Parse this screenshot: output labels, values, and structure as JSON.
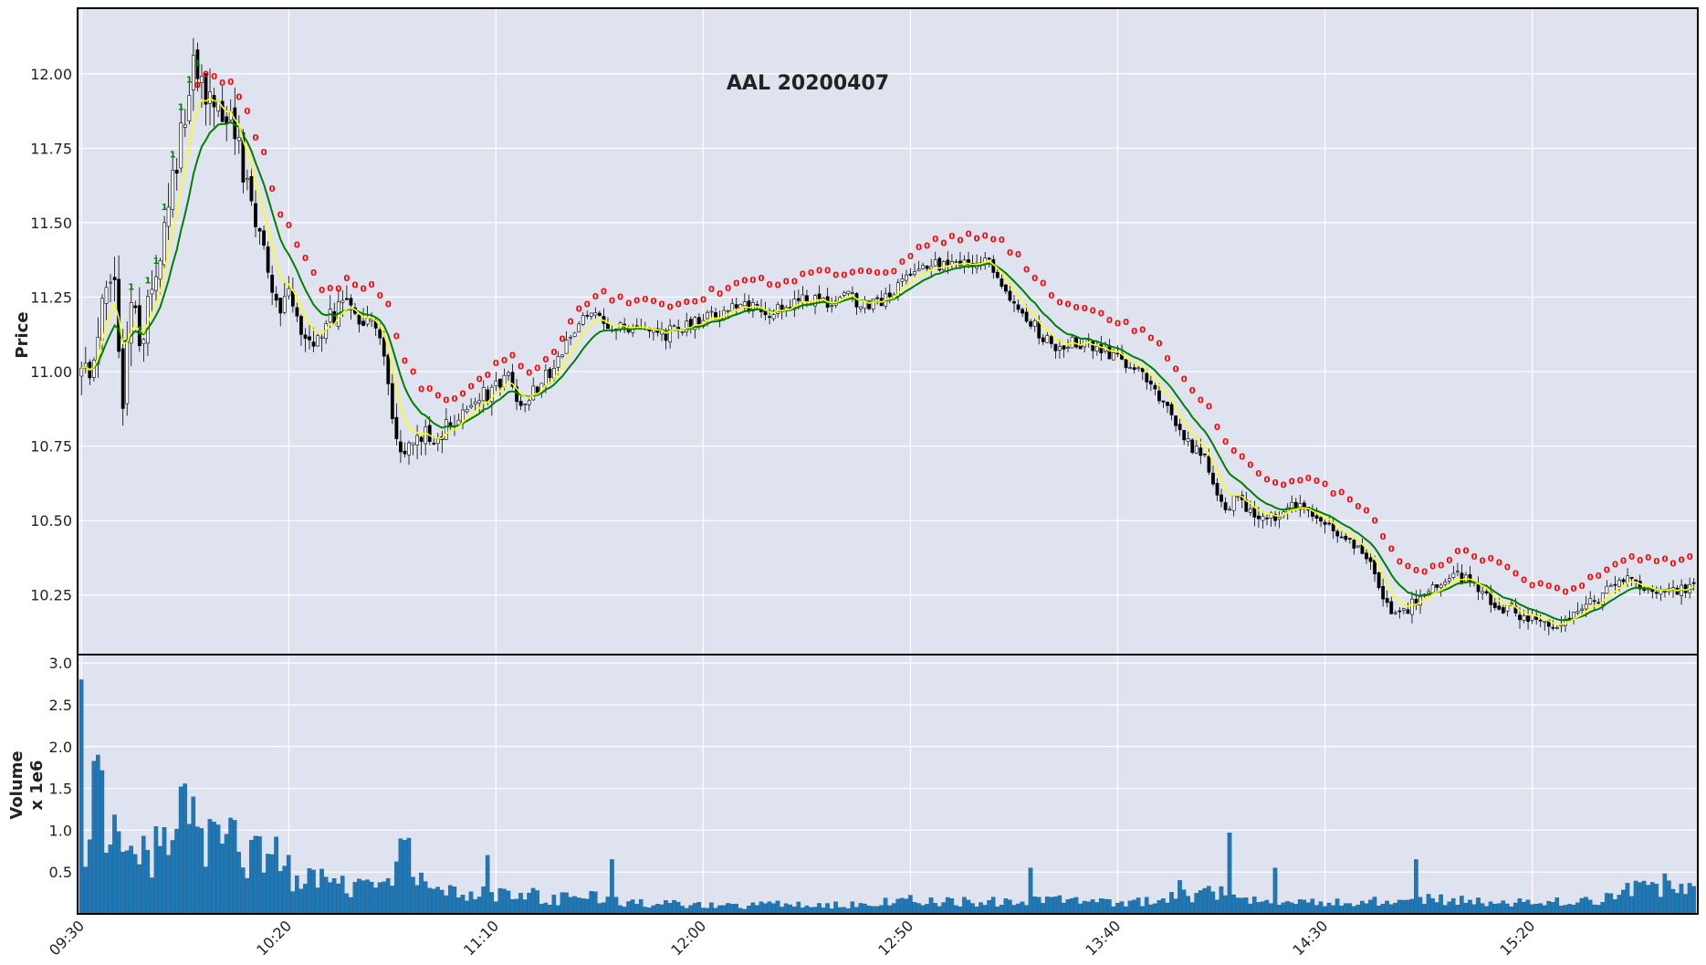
{
  "chart_data": {
    "type": "candlestick",
    "title": "AAL 20200407",
    "price_panel": {
      "ylabel": "Price",
      "ylim": [
        10.05,
        12.22
      ],
      "yticks": [
        10.25,
        10.5,
        10.75,
        11.0,
        11.25,
        11.5,
        11.75,
        12.0
      ],
      "ytick_labels": [
        "10.25",
        "10.50",
        "10.75",
        "11.00",
        "11.25",
        "11.50",
        "11.75",
        "12.00"
      ],
      "grid": true,
      "series": [
        {
          "name": "fast_ma",
          "color": "#ffff00"
        },
        {
          "name": "slow_ma",
          "color": "#008000"
        },
        {
          "name": "up_markers",
          "label": "1",
          "color": "#008000"
        },
        {
          "name": "down_markers",
          "label": "0",
          "color": "#ff0000"
        }
      ]
    },
    "volume_panel": {
      "ylabel_line1": "Volume",
      "ylabel_line2": "x 1e6",
      "ylim": [
        0,
        3.1
      ],
      "yticks": [
        0.5,
        1.0,
        1.5,
        2.0,
        2.5,
        3.0
      ],
      "ytick_labels": [
        "0.5",
        "1.0",
        "1.5",
        "2.0",
        "2.5",
        "3.0"
      ],
      "bar_color": "#1f77b4",
      "grid": true
    },
    "x_axis": {
      "bars": 390,
      "session_start": "09:30",
      "ticks": [
        {
          "index": 0,
          "label": "09:30"
        },
        {
          "index": 50,
          "label": "10:20"
        },
        {
          "index": 100,
          "label": "11:10"
        },
        {
          "index": 150,
          "label": "12:00"
        },
        {
          "index": 200,
          "label": "12:50"
        },
        {
          "index": 250,
          "label": "13:40"
        },
        {
          "index": 300,
          "label": "14:30"
        },
        {
          "index": 350,
          "label": "15:20"
        }
      ]
    },
    "price_path": [
      [
        0,
        11.0
      ],
      [
        2,
        10.97
      ],
      [
        5,
        11.2
      ],
      [
        8,
        11.3
      ],
      [
        9,
        11.1
      ],
      [
        10,
        10.92
      ],
      [
        12,
        11.2
      ],
      [
        14,
        11.12
      ],
      [
        17,
        11.25
      ],
      [
        20,
        11.45
      ],
      [
        23,
        11.72
      ],
      [
        26,
        11.97
      ],
      [
        27,
        12.03
      ],
      [
        29,
        11.95
      ],
      [
        31,
        11.88
      ],
      [
        33,
        11.86
      ],
      [
        36,
        11.82
      ],
      [
        38,
        11.75
      ],
      [
        40,
        11.62
      ],
      [
        42,
        11.52
      ],
      [
        44,
        11.42
      ],
      [
        46,
        11.25
      ],
      [
        48,
        11.2
      ],
      [
        50,
        11.25
      ],
      [
        52,
        11.18
      ],
      [
        54,
        11.12
      ],
      [
        56,
        11.1
      ],
      [
        58,
        11.15
      ],
      [
        60,
        11.18
      ],
      [
        63,
        11.22
      ],
      [
        66,
        11.2
      ],
      [
        70,
        11.15
      ],
      [
        73,
        11.05
      ],
      [
        75,
        10.85
      ],
      [
        77,
        10.72
      ],
      [
        80,
        10.76
      ],
      [
        83,
        10.8
      ],
      [
        86,
        10.78
      ],
      [
        90,
        10.85
      ],
      [
        95,
        10.9
      ],
      [
        100,
        10.95
      ],
      [
        103,
        10.98
      ],
      [
        106,
        10.88
      ],
      [
        110,
        10.95
      ],
      [
        113,
        11.0
      ],
      [
        116,
        11.06
      ],
      [
        120,
        11.18
      ],
      [
        124,
        11.2
      ],
      [
        128,
        11.15
      ],
      [
        132,
        11.14
      ],
      [
        136,
        11.16
      ],
      [
        140,
        11.12
      ],
      [
        145,
        11.15
      ],
      [
        150,
        11.18
      ],
      [
        155,
        11.2
      ],
      [
        160,
        11.22
      ],
      [
        165,
        11.2
      ],
      [
        170,
        11.22
      ],
      [
        175,
        11.25
      ],
      [
        180,
        11.22
      ],
      [
        185,
        11.25
      ],
      [
        190,
        11.22
      ],
      [
        195,
        11.25
      ],
      [
        200,
        11.33
      ],
      [
        205,
        11.35
      ],
      [
        210,
        11.38
      ],
      [
        215,
        11.37
      ],
      [
        218,
        11.38
      ],
      [
        220,
        11.35
      ],
      [
        223,
        11.28
      ],
      [
        226,
        11.2
      ],
      [
        230,
        11.15
      ],
      [
        233,
        11.1
      ],
      [
        236,
        11.08
      ],
      [
        240,
        11.1
      ],
      [
        245,
        11.08
      ],
      [
        250,
        11.05
      ],
      [
        253,
        11.02
      ],
      [
        256,
        11.0
      ],
      [
        259,
        10.93
      ],
      [
        262,
        10.88
      ],
      [
        265,
        10.8
      ],
      [
        268,
        10.75
      ],
      [
        271,
        10.7
      ],
      [
        274,
        10.6
      ],
      [
        276,
        10.55
      ],
      [
        278,
        10.57
      ],
      [
        281,
        10.55
      ],
      [
        285,
        10.5
      ],
      [
        288,
        10.52
      ],
      [
        292,
        10.56
      ],
      [
        296,
        10.53
      ],
      [
        300,
        10.48
      ],
      [
        304,
        10.45
      ],
      [
        308,
        10.42
      ],
      [
        311,
        10.38
      ],
      [
        314,
        10.25
      ],
      [
        317,
        10.17
      ],
      [
        320,
        10.2
      ],
      [
        324,
        10.26
      ],
      [
        328,
        10.3
      ],
      [
        332,
        10.32
      ],
      [
        336,
        10.28
      ],
      [
        340,
        10.23
      ],
      [
        344,
        10.2
      ],
      [
        347,
        10.18
      ],
      [
        350,
        10.17
      ],
      [
        354,
        10.14
      ],
      [
        358,
        10.18
      ],
      [
        362,
        10.2
      ],
      [
        366,
        10.24
      ],
      [
        370,
        10.28
      ],
      [
        374,
        10.3
      ],
      [
        378,
        10.27
      ],
      [
        382,
        10.26
      ],
      [
        386,
        10.27
      ],
      [
        389,
        10.27
      ]
    ],
    "volume_profile": [
      [
        0,
        2.8
      ],
      [
        1,
        0.8
      ],
      [
        3,
        1.3
      ],
      [
        4,
        1.9
      ],
      [
        6,
        0.95
      ],
      [
        8,
        1.0
      ],
      [
        10,
        0.75
      ],
      [
        12,
        0.8
      ],
      [
        14,
        0.6
      ],
      [
        17,
        0.75
      ],
      [
        20,
        0.8
      ],
      [
        22,
        0.9
      ],
      [
        24,
        1.5
      ],
      [
        26,
        1.1
      ],
      [
        28,
        0.95
      ],
      [
        30,
        1.0
      ],
      [
        32,
        1.4
      ],
      [
        34,
        1.1
      ],
      [
        36,
        0.9
      ],
      [
        38,
        0.8
      ],
      [
        40,
        0.7
      ],
      [
        45,
        0.6
      ],
      [
        50,
        0.5
      ],
      [
        55,
        0.42
      ],
      [
        60,
        0.35
      ],
      [
        65,
        0.3
      ],
      [
        70,
        0.28
      ],
      [
        75,
        0.4
      ],
      [
        78,
        0.8
      ],
      [
        80,
        0.55
      ],
      [
        85,
        0.28
      ],
      [
        90,
        0.25
      ],
      [
        95,
        0.22
      ],
      [
        100,
        0.25
      ],
      [
        105,
        0.2
      ],
      [
        110,
        0.22
      ],
      [
        115,
        0.18
      ],
      [
        120,
        0.2
      ],
      [
        125,
        0.18
      ],
      [
        130,
        0.15
      ],
      [
        135,
        0.13
      ],
      [
        140,
        0.12
      ],
      [
        145,
        0.11
      ],
      [
        150,
        0.1
      ],
      [
        155,
        0.09
      ],
      [
        160,
        0.1
      ],
      [
        170,
        0.11
      ],
      [
        180,
        0.1
      ],
      [
        190,
        0.12
      ],
      [
        195,
        0.18
      ],
      [
        200,
        0.17
      ],
      [
        210,
        0.14
      ],
      [
        220,
        0.15
      ],
      [
        230,
        0.18
      ],
      [
        240,
        0.14
      ],
      [
        250,
        0.12
      ],
      [
        255,
        0.14
      ],
      [
        260,
        0.16
      ],
      [
        265,
        0.22
      ],
      [
        270,
        0.25
      ],
      [
        275,
        0.27
      ],
      [
        280,
        0.22
      ],
      [
        285,
        0.2
      ],
      [
        290,
        0.18
      ],
      [
        295,
        0.16
      ],
      [
        300,
        0.15
      ],
      [
        310,
        0.14
      ],
      [
        320,
        0.18
      ],
      [
        330,
        0.16
      ],
      [
        340,
        0.14
      ],
      [
        350,
        0.13
      ],
      [
        360,
        0.16
      ],
      [
        370,
        0.2
      ],
      [
        375,
        0.3
      ],
      [
        380,
        0.28
      ],
      [
        385,
        0.35
      ],
      [
        389,
        0.45
      ]
    ],
    "volume_spikes": [
      [
        0,
        2.8
      ],
      [
        4,
        1.9
      ],
      [
        24,
        1.52
      ],
      [
        27,
        1.4
      ],
      [
        32,
        1.1
      ],
      [
        47,
        0.92
      ],
      [
        77,
        0.9
      ],
      [
        98,
        0.7
      ],
      [
        128,
        0.65
      ],
      [
        229,
        0.55
      ],
      [
        265,
        0.4
      ],
      [
        277,
        0.97
      ],
      [
        288,
        0.55
      ],
      [
        322,
        0.65
      ],
      [
        363,
        0.2
      ],
      [
        382,
        0.48
      ]
    ]
  }
}
